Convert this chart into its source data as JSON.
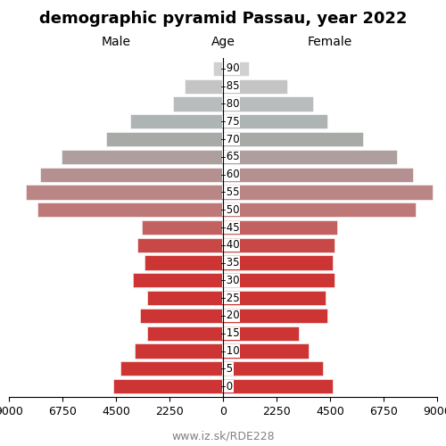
{
  "title": "demographic pyramid Passau, year 2022",
  "male_label": "Male",
  "female_label": "Female",
  "age_label": "Age",
  "footer": "www.iz.sk/RDE228",
  "age_groups": [
    0,
    5,
    10,
    15,
    20,
    25,
    30,
    35,
    40,
    45,
    50,
    55,
    60,
    65,
    70,
    75,
    80,
    85,
    90
  ],
  "male_values": [
    4600,
    4300,
    3700,
    3200,
    3500,
    3200,
    3800,
    3300,
    3600,
    3400,
    7800,
    8300,
    7700,
    6800,
    4900,
    3900,
    2100,
    1600,
    400
  ],
  "female_values": [
    4600,
    4200,
    3600,
    3200,
    4400,
    4300,
    4700,
    4600,
    4700,
    4800,
    8100,
    8800,
    8000,
    7300,
    5900,
    4400,
    3800,
    2700,
    1100
  ],
  "xlim": 9000,
  "bar_height": 0.82,
  "background_color": "#ffffff",
  "title_fontsize": 13,
  "label_fontsize": 10,
  "tick_fontsize": 9,
  "footer_fontsize": 9,
  "colors": {
    "0": "#cd3535",
    "5": "#cd3535",
    "10": "#cd3535",
    "15": "#cd3535",
    "20": "#cd3535",
    "25": "#cd3535",
    "30": "#cd3535",
    "35": "#cd3535",
    "40": "#c84848",
    "45": "#c36060",
    "50": "#be7878",
    "55": "#b98585",
    "60": "#b49090",
    "65": "#ae9e9e",
    "70": "#a8aaa8",
    "75": "#aeb4b4",
    "80": "#b8bcbc",
    "85": "#c4c4c4",
    "90": "#d0d0d0"
  }
}
